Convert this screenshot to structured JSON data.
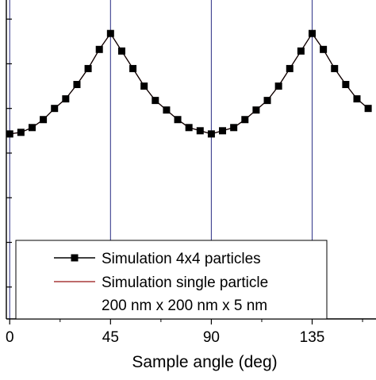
{
  "chart_data": {
    "type": "line",
    "xlabel": "Sample angle (deg)",
    "ylabel": "",
    "xlim": [
      -1.5,
      163.5
    ],
    "ylim": [
      0,
      1
    ],
    "x_ticks": [
      0,
      45,
      90,
      135
    ],
    "y_tick_labels_visible": false,
    "vertical_reference_lines_at": [
      0,
      45,
      90,
      135
    ],
    "x": [
      0,
      5,
      10,
      15,
      20,
      25,
      30,
      35,
      40,
      45,
      50,
      55,
      60,
      65,
      70,
      75,
      80,
      85,
      90,
      95,
      100,
      105,
      110,
      115,
      120,
      125,
      130,
      135,
      140,
      145,
      150,
      155,
      160
    ],
    "series": [
      {
        "name": "Simulation 4x4 particles",
        "marker": "square",
        "color": "#000000",
        "values": [
          0.58,
          0.585,
          0.6,
          0.625,
          0.66,
          0.69,
          0.735,
          0.785,
          0.845,
          0.895,
          0.84,
          0.785,
          0.73,
          0.685,
          0.655,
          0.625,
          0.6,
          0.59,
          0.58,
          0.59,
          0.6,
          0.625,
          0.655,
          0.685,
          0.73,
          0.785,
          0.84,
          0.895,
          0.845,
          0.785,
          0.735,
          0.69,
          0.66
        ]
      },
      {
        "name": "Simulation single particle",
        "marker": "none",
        "color": "#a83a3a",
        "values": [
          0.58,
          0.585,
          0.6,
          0.625,
          0.66,
          0.69,
          0.735,
          0.785,
          0.845,
          0.895,
          0.84,
          0.785,
          0.73,
          0.685,
          0.655,
          0.625,
          0.6,
          0.59,
          0.58,
          0.59,
          0.6,
          0.625,
          0.655,
          0.685,
          0.73,
          0.785,
          0.84,
          0.895,
          0.845,
          0.785,
          0.735,
          0.69,
          0.66
        ]
      }
    ],
    "legend": {
      "placement": "bottom-left",
      "entries": [
        "Simulation 4x4 particles",
        "Simulation single particle",
        "200 nm x 200 nm x 5 nm"
      ]
    },
    "colors": {
      "axis": "#000000",
      "reference_line": "#3b3f8f",
      "markers": "#000000",
      "single_particle_line": "#a83a3a"
    }
  }
}
